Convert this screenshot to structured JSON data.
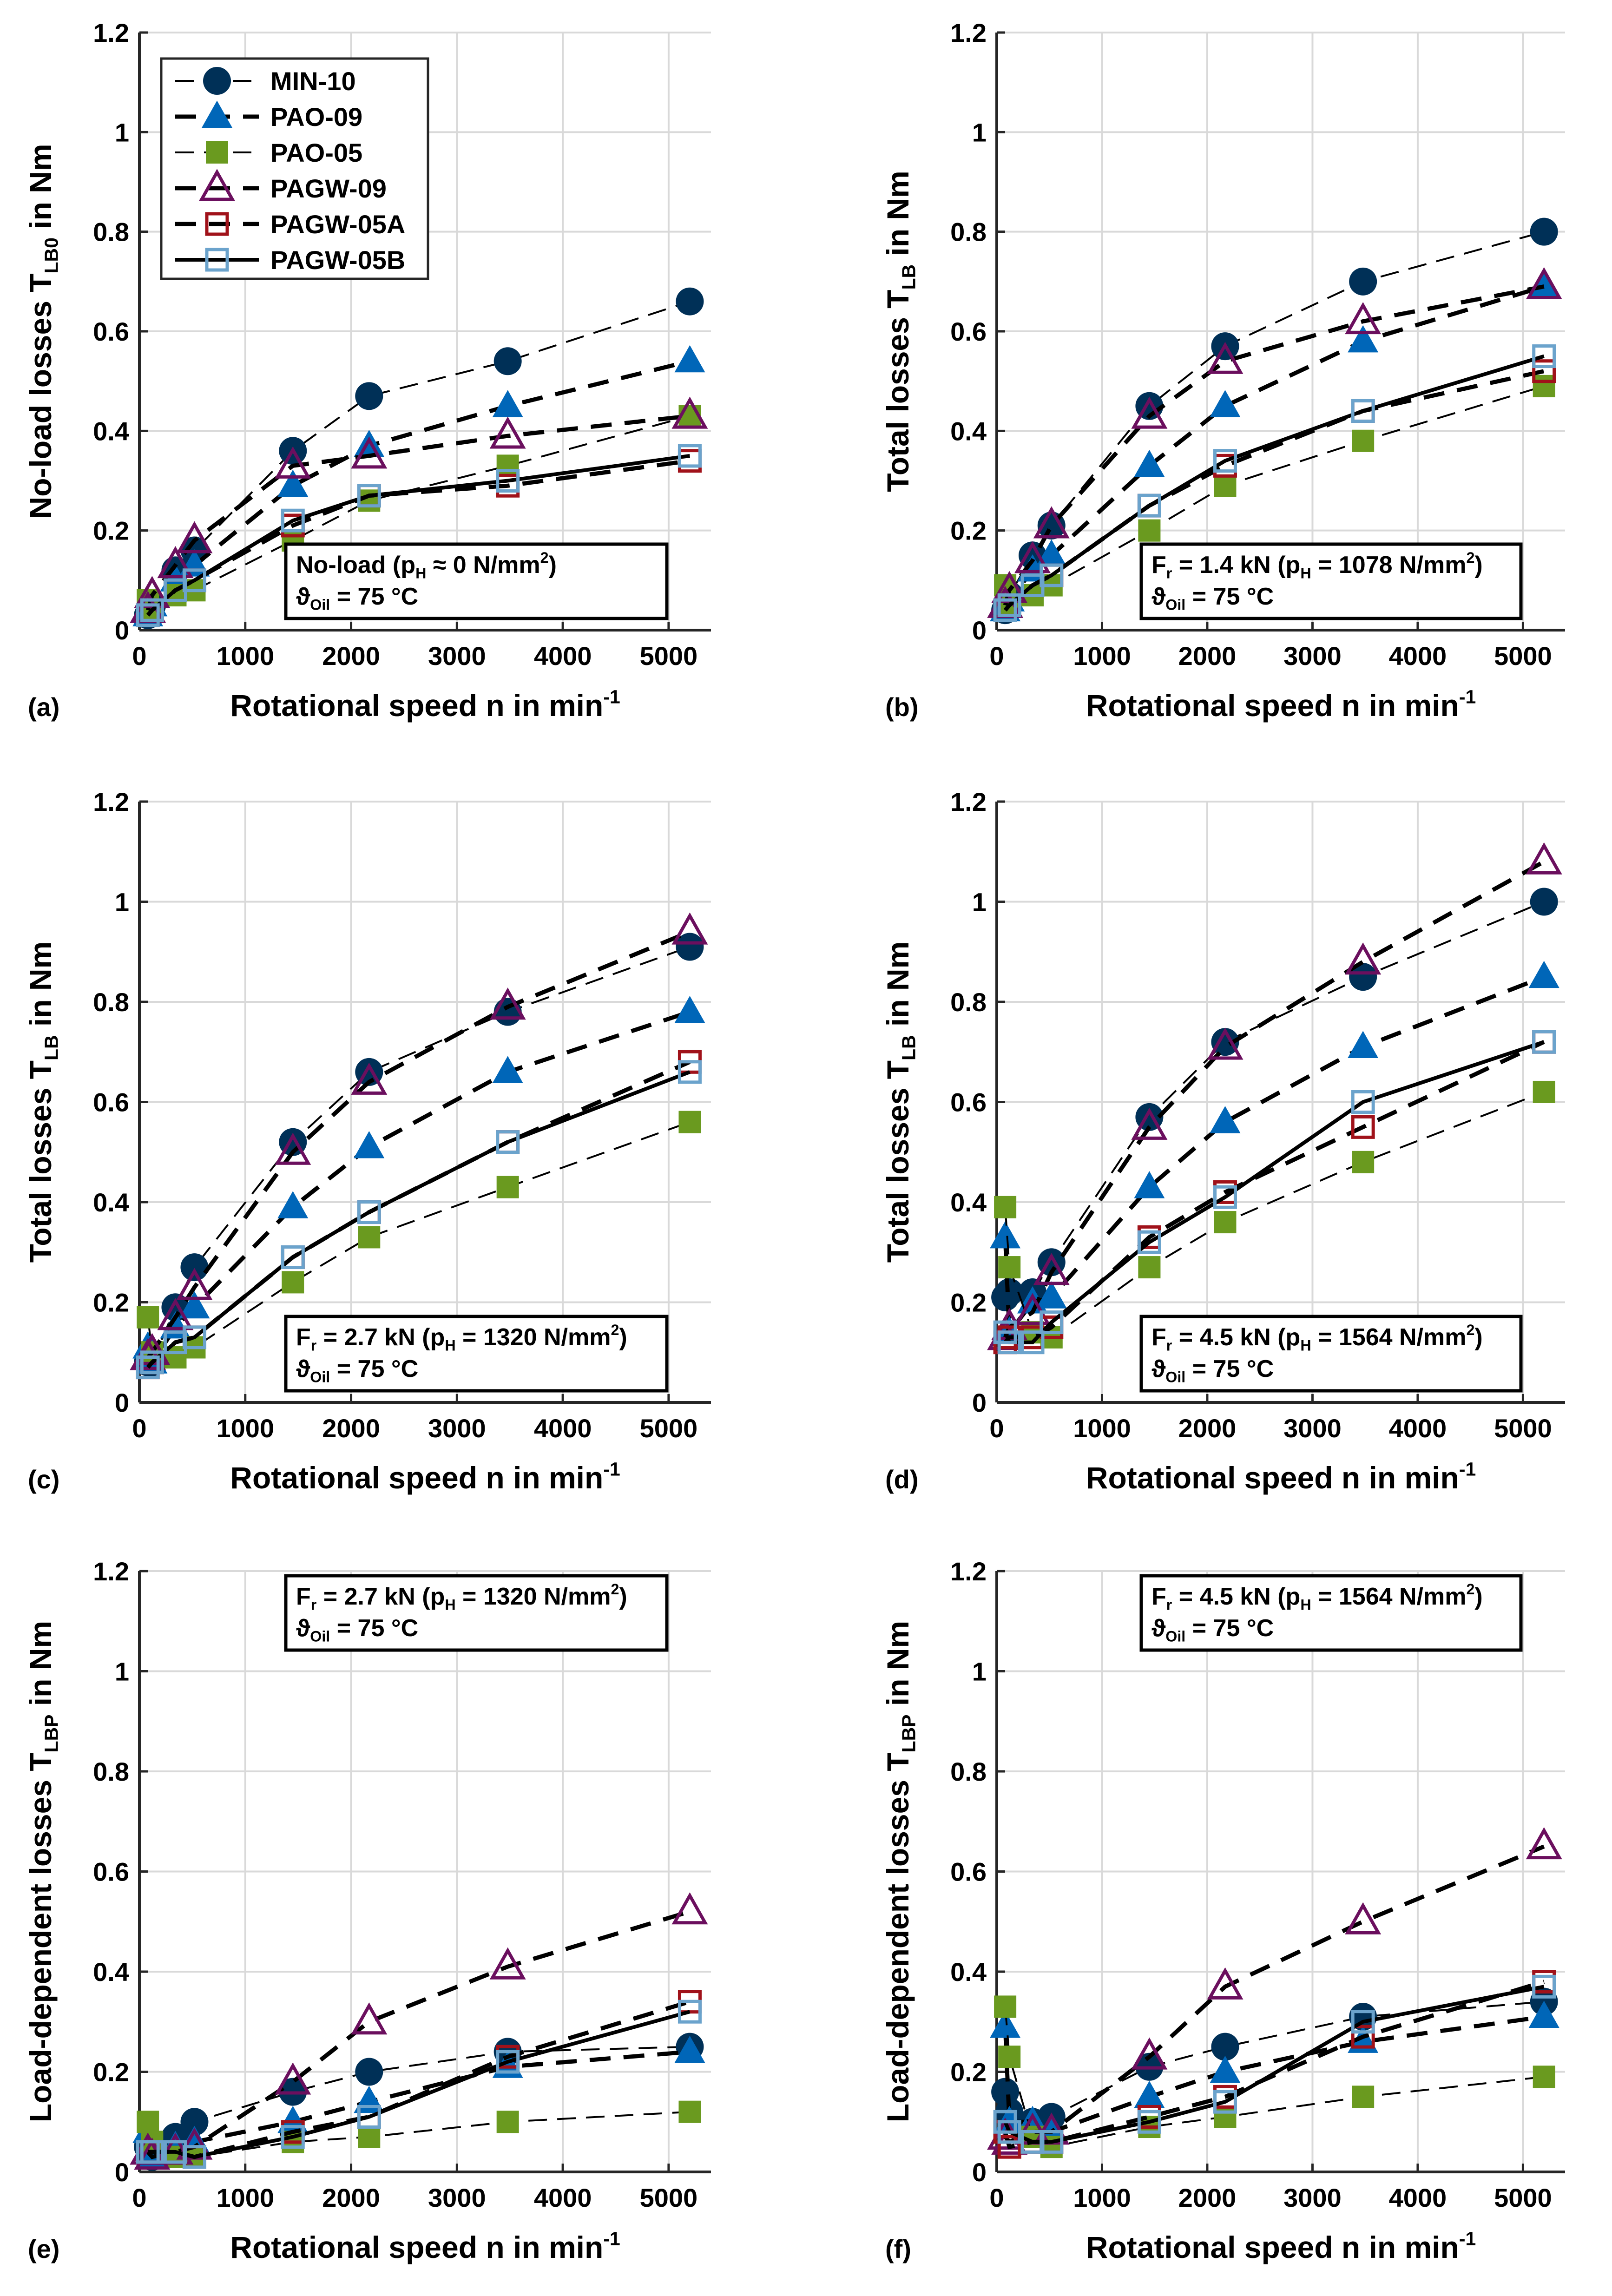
{
  "legend": {
    "entries": [
      "MIN-10",
      "PAO-09",
      "PAO-05",
      "PAGW-09",
      "PAGW-05A",
      "PAGW-05B"
    ]
  },
  "series_style": {
    "MIN-10": {
      "color": "#003057",
      "marker": "circle-filled",
      "line": "thin-dash"
    },
    "PAO-09": {
      "color": "#0066b8",
      "marker": "triangle-filled",
      "line": "thick-dash"
    },
    "PAO-05": {
      "color": "#6a9a1f",
      "marker": "square-filled",
      "line": "thin-dash"
    },
    "PAGW-09": {
      "color": "#6b0f5e",
      "marker": "triangle-open",
      "line": "thick-dash"
    },
    "PAGW-05A": {
      "color": "#a0121a",
      "marker": "square-open",
      "line": "thick-dash"
    },
    "PAGW-05B": {
      "color": "#6ba3cc",
      "marker": "square-open",
      "line": "solid"
    }
  },
  "chart_data": [
    {
      "panel": "(a)",
      "type": "line",
      "xlabel": [
        {
          "t": "Rotational speed n in min"
        },
        {
          "t": "-1",
          "sup": true
        }
      ],
      "ylabel": [
        {
          "t": "No-load losses T"
        },
        {
          "t": "LB0",
          "sub": true
        },
        {
          "t": " in Nm"
        }
      ],
      "xlim": [
        0,
        5400
      ],
      "ylim": [
        0,
        1.2
      ],
      "grid": true,
      "xticks": [
        0,
        1000,
        2000,
        3000,
        4000,
        5000
      ],
      "yticks": [
        0,
        0.2,
        0.4,
        0.6,
        0.8,
        1,
        1.2
      ],
      "legend_placement": "top-left",
      "annotation": [
        [
          {
            "t": "No-load  (p"
          },
          {
            "t": "H",
            "sub": true
          },
          {
            "t": " ≈ 0 N/mm"
          },
          {
            "t": "2",
            "sup": true
          },
          {
            "t": ")"
          }
        ],
        [
          {
            "t": "ϑ"
          },
          {
            "t": "Oil",
            "sub": true
          },
          {
            "t": " = 75 °C"
          }
        ]
      ],
      "annotation_placement": "bottom-right",
      "x": [
        80,
        120,
        340,
        520,
        1450,
        2170,
        3480,
        5200
      ],
      "series": [
        {
          "name": "MIN-10",
          "values": [
            0.03,
            0.05,
            0.12,
            0.16,
            0.36,
            0.47,
            0.54,
            0.66
          ]
        },
        {
          "name": "PAO-09",
          "values": [
            0.03,
            0.05,
            0.1,
            0.13,
            0.29,
            0.37,
            0.45,
            0.54
          ]
        },
        {
          "name": "PAO-05",
          "values": [
            0.06,
            0.04,
            0.07,
            0.08,
            0.18,
            0.26,
            0.33,
            0.43
          ]
        },
        {
          "name": "PAGW-09",
          "values": [
            0.04,
            0.07,
            0.13,
            0.18,
            0.33,
            0.35,
            0.39,
            0.43
          ]
        },
        {
          "name": "PAGW-05A",
          "values": [
            0.03,
            0.04,
            0.08,
            0.1,
            0.21,
            0.27,
            0.29,
            0.34
          ]
        },
        {
          "name": "PAGW-05B",
          "values": [
            0.03,
            0.04,
            0.08,
            0.1,
            0.22,
            0.27,
            0.3,
            0.35
          ]
        }
      ]
    },
    {
      "panel": "(b)",
      "type": "line",
      "xlabel": [
        {
          "t": "Rotational speed n in min"
        },
        {
          "t": "-1",
          "sup": true
        }
      ],
      "ylabel": [
        {
          "t": "Total losses T"
        },
        {
          "t": "LB",
          "sub": true
        },
        {
          "t": " in Nm"
        }
      ],
      "xlim": [
        0,
        5400
      ],
      "ylim": [
        0,
        1.2
      ],
      "grid": true,
      "xticks": [
        0,
        1000,
        2000,
        3000,
        4000,
        5000
      ],
      "yticks": [
        0,
        0.2,
        0.4,
        0.6,
        0.8,
        1,
        1.2
      ],
      "annotation": [
        [
          {
            "t": "F"
          },
          {
            "t": "r",
            "sub": true
          },
          {
            "t": " = 1.4 kN (p"
          },
          {
            "t": "H",
            "sub": true
          },
          {
            "t": " = 1078 N/mm"
          },
          {
            "t": "2",
            "sup": true
          },
          {
            "t": ")"
          }
        ],
        [
          {
            "t": "ϑ"
          },
          {
            "t": "Oil",
            "sub": true
          },
          {
            "t": " = 75 °C"
          }
        ]
      ],
      "annotation_placement": "bottom-right",
      "x": [
        80,
        120,
        340,
        520,
        1450,
        2170,
        3480,
        5200
      ],
      "series": [
        {
          "name": "MIN-10",
          "values": [
            0.04,
            0.07,
            0.15,
            0.21,
            0.45,
            0.57,
            0.7,
            0.8
          ]
        },
        {
          "name": "PAO-09",
          "values": [
            0.04,
            0.06,
            0.12,
            0.15,
            0.33,
            0.45,
            0.58,
            0.69
          ]
        },
        {
          "name": "PAO-05",
          "values": [
            0.09,
            0.05,
            0.07,
            0.09,
            0.2,
            0.29,
            0.38,
            0.49
          ]
        },
        {
          "name": "PAGW-09",
          "values": [
            0.05,
            0.08,
            0.14,
            0.21,
            0.43,
            0.54,
            0.62,
            0.69
          ]
        },
        {
          "name": "PAGW-05A",
          "values": [
            0.04,
            0.05,
            0.09,
            0.11,
            0.25,
            0.33,
            0.44,
            0.52
          ]
        },
        {
          "name": "PAGW-05B",
          "values": [
            0.04,
            0.05,
            0.09,
            0.11,
            0.25,
            0.34,
            0.44,
            0.55
          ]
        }
      ]
    },
    {
      "panel": "(c)",
      "type": "line",
      "xlabel": [
        {
          "t": "Rotational speed n in min"
        },
        {
          "t": "-1",
          "sup": true
        }
      ],
      "ylabel": [
        {
          "t": "Total losses T"
        },
        {
          "t": "LB",
          "sub": true
        },
        {
          "t": " in Nm"
        }
      ],
      "xlim": [
        0,
        5400
      ],
      "ylim": [
        0,
        1.2
      ],
      "grid": true,
      "xticks": [
        0,
        1000,
        2000,
        3000,
        4000,
        5000
      ],
      "yticks": [
        0,
        0.2,
        0.4,
        0.6,
        0.8,
        1,
        1.2
      ],
      "annotation": [
        [
          {
            "t": "F"
          },
          {
            "t": "r",
            "sub": true
          },
          {
            "t": " = 2.7 kN (p"
          },
          {
            "t": "H",
            "sub": true
          },
          {
            "t": " = 1320 N/mm"
          },
          {
            "t": "2",
            "sup": true
          },
          {
            "t": ")"
          }
        ],
        [
          {
            "t": "ϑ"
          },
          {
            "t": "Oil",
            "sub": true
          },
          {
            "t": " = 75 °C"
          }
        ]
      ],
      "annotation_placement": "bottom-right",
      "x": [
        80,
        120,
        340,
        520,
        1450,
        2170,
        3480,
        5200
      ],
      "series": [
        {
          "name": "MIN-10",
          "values": [
            0.08,
            0.08,
            0.19,
            0.27,
            0.52,
            0.66,
            0.78,
            0.91
          ]
        },
        {
          "name": "PAO-09",
          "values": [
            0.11,
            0.08,
            0.15,
            0.19,
            0.39,
            0.51,
            0.66,
            0.78
          ]
        },
        {
          "name": "PAO-05",
          "values": [
            0.17,
            0.1,
            0.09,
            0.11,
            0.24,
            0.33,
            0.43,
            0.56
          ]
        },
        {
          "name": "PAGW-09",
          "values": [
            0.09,
            0.1,
            0.17,
            0.23,
            0.5,
            0.64,
            0.79,
            0.94
          ]
        },
        {
          "name": "PAGW-05A",
          "values": [
            0.07,
            0.08,
            0.12,
            0.13,
            0.29,
            0.38,
            0.52,
            0.68
          ]
        },
        {
          "name": "PAGW-05B",
          "values": [
            0.07,
            0.08,
            0.12,
            0.13,
            0.29,
            0.38,
            0.52,
            0.66
          ]
        }
      ]
    },
    {
      "panel": "(d)",
      "type": "line",
      "xlabel": [
        {
          "t": "Rotational speed n in min"
        },
        {
          "t": "-1",
          "sup": true
        }
      ],
      "ylabel": [
        {
          "t": "Total losses T"
        },
        {
          "t": "LB",
          "sub": true
        },
        {
          "t": " in Nm"
        }
      ],
      "xlim": [
        0,
        5400
      ],
      "ylim": [
        0,
        1.2
      ],
      "grid": true,
      "xticks": [
        0,
        1000,
        2000,
        3000,
        4000,
        5000
      ],
      "yticks": [
        0,
        0.2,
        0.4,
        0.6,
        0.8,
        1,
        1.2
      ],
      "annotation": [
        [
          {
            "t": "F"
          },
          {
            "t": "r",
            "sub": true
          },
          {
            "t": " = 4.5 kN (p"
          },
          {
            "t": "H",
            "sub": true
          },
          {
            "t": " = 1564 N/mm"
          },
          {
            "t": "2",
            "sup": true
          },
          {
            "t": ")"
          }
        ],
        [
          {
            "t": "ϑ"
          },
          {
            "t": "Oil",
            "sub": true
          },
          {
            "t": " = 75 °C"
          }
        ]
      ],
      "annotation_placement": "bottom-right",
      "x": [
        80,
        120,
        340,
        520,
        1450,
        2170,
        3480,
        5200
      ],
      "series": [
        {
          "name": "MIN-10",
          "values": [
            0.21,
            0.22,
            0.22,
            0.28,
            0.57,
            0.72,
            0.85,
            1.0
          ]
        },
        {
          "name": "PAO-09",
          "values": [
            0.33,
            0.14,
            0.2,
            0.21,
            0.43,
            0.56,
            0.71,
            0.85
          ]
        },
        {
          "name": "PAO-05",
          "values": [
            0.39,
            0.27,
            0.14,
            0.13,
            0.27,
            0.36,
            0.48,
            0.62
          ]
        },
        {
          "name": "PAGW-09",
          "values": [
            0.13,
            0.15,
            0.18,
            0.26,
            0.55,
            0.71,
            0.88,
            1.08
          ]
        },
        {
          "name": "PAGW-05A",
          "values": [
            0.12,
            0.13,
            0.13,
            0.15,
            0.33,
            0.42,
            0.55,
            0.72
          ]
        },
        {
          "name": "PAGW-05B",
          "values": [
            0.14,
            0.12,
            0.12,
            0.16,
            0.32,
            0.41,
            0.6,
            0.72
          ]
        }
      ]
    },
    {
      "panel": "(e)",
      "type": "line",
      "xlabel": [
        {
          "t": "Rotational speed n in min"
        },
        {
          "t": "-1",
          "sup": true
        }
      ],
      "ylabel": [
        {
          "t": "Load-dependent losses T"
        },
        {
          "t": "LBP",
          "sub": true
        },
        {
          "t": " in Nm"
        }
      ],
      "xlim": [
        0,
        5400
      ],
      "ylim": [
        0,
        1.2
      ],
      "grid": true,
      "xticks": [
        0,
        1000,
        2000,
        3000,
        4000,
        5000
      ],
      "yticks": [
        0,
        0.2,
        0.4,
        0.6,
        0.8,
        1,
        1.2
      ],
      "annotation": [
        [
          {
            "t": "F"
          },
          {
            "t": "r",
            "sub": true
          },
          {
            "t": " = 2.7 kN (p"
          },
          {
            "t": "H",
            "sub": true
          },
          {
            "t": " = 1320 N/mm"
          },
          {
            "t": "2",
            "sup": true
          },
          {
            "t": ")"
          }
        ],
        [
          {
            "t": "ϑ"
          },
          {
            "t": "Oil",
            "sub": true
          },
          {
            "t": " = 75 °C"
          }
        ]
      ],
      "annotation_placement": "top-right",
      "x": [
        80,
        120,
        340,
        520,
        1450,
        2170,
        3480,
        5200
      ],
      "series": [
        {
          "name": "MIN-10",
          "values": [
            0.05,
            0.03,
            0.07,
            0.1,
            0.16,
            0.2,
            0.24,
            0.25
          ]
        },
        {
          "name": "PAO-09",
          "values": [
            0.08,
            0.03,
            0.05,
            0.06,
            0.1,
            0.14,
            0.21,
            0.24
          ]
        },
        {
          "name": "PAO-05",
          "values": [
            0.1,
            0.06,
            0.03,
            0.03,
            0.06,
            0.07,
            0.1,
            0.12
          ]
        },
        {
          "name": "PAGW-09",
          "values": [
            0.04,
            0.03,
            0.04,
            0.05,
            0.18,
            0.3,
            0.41,
            0.52
          ]
        },
        {
          "name": "PAGW-05A",
          "values": [
            0.04,
            0.04,
            0.04,
            0.03,
            0.08,
            0.11,
            0.23,
            0.34
          ]
        },
        {
          "name": "PAGW-05B",
          "values": [
            0.04,
            0.04,
            0.04,
            0.03,
            0.07,
            0.11,
            0.22,
            0.32
          ]
        }
      ]
    },
    {
      "panel": "(f)",
      "type": "line",
      "xlabel": [
        {
          "t": "Rotational speed n in min"
        },
        {
          "t": "-1",
          "sup": true
        }
      ],
      "ylabel": [
        {
          "t": "Load-dependent losses T"
        },
        {
          "t": "LBP",
          "sub": true
        },
        {
          "t": " in Nm"
        }
      ],
      "xlim": [
        0,
        5400
      ],
      "ylim": [
        0,
        1.2
      ],
      "grid": true,
      "xticks": [
        0,
        1000,
        2000,
        3000,
        4000,
        5000
      ],
      "yticks": [
        0,
        0.2,
        0.4,
        0.6,
        0.8,
        1,
        1.2
      ],
      "annotation": [
        [
          {
            "t": "F"
          },
          {
            "t": "r",
            "sub": true
          },
          {
            "t": " = 4.5 kN (p"
          },
          {
            "t": "H",
            "sub": true
          },
          {
            "t": " = 1564 N/mm"
          },
          {
            "t": "2",
            "sup": true
          },
          {
            "t": ")"
          }
        ],
        [
          {
            "t": "ϑ"
          },
          {
            "t": "Oil",
            "sub": true
          },
          {
            "t": " = 75 °C"
          }
        ]
      ],
      "annotation_placement": "top-right",
      "x": [
        80,
        120,
        340,
        520,
        1450,
        2170,
        3480,
        5200
      ],
      "series": [
        {
          "name": "MIN-10",
          "values": [
            0.16,
            0.12,
            0.1,
            0.11,
            0.21,
            0.25,
            0.31,
            0.34
          ]
        },
        {
          "name": "PAO-09",
          "values": [
            0.29,
            0.1,
            0.1,
            0.08,
            0.15,
            0.2,
            0.26,
            0.31
          ]
        },
        {
          "name": "PAO-05",
          "values": [
            0.33,
            0.23,
            0.07,
            0.05,
            0.09,
            0.11,
            0.15,
            0.19
          ]
        },
        {
          "name": "PAGW-09",
          "values": [
            0.07,
            0.06,
            0.08,
            0.08,
            0.23,
            0.37,
            0.5,
            0.65
          ]
        },
        {
          "name": "PAGW-05A",
          "values": [
            0.08,
            0.05,
            0.06,
            0.06,
            0.11,
            0.15,
            0.27,
            0.38
          ]
        },
        {
          "name": "PAGW-05B",
          "values": [
            0.1,
            0.08,
            0.06,
            0.06,
            0.1,
            0.14,
            0.3,
            0.37
          ]
        }
      ]
    }
  ]
}
